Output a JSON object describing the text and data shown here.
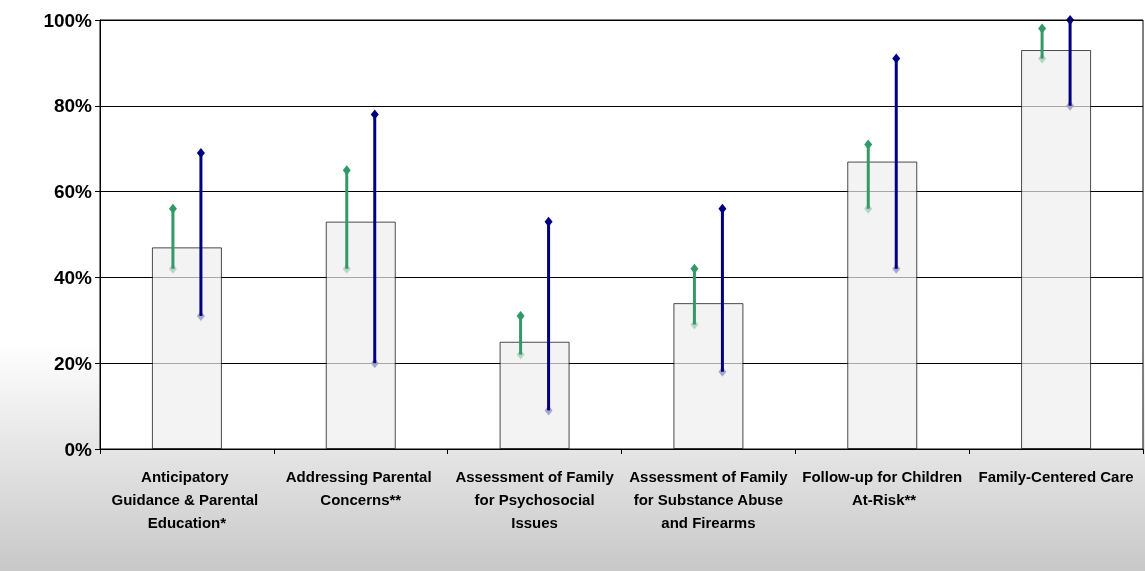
{
  "chart_data": {
    "type": "bar",
    "categories": [
      "Anticipatory Guidance & Parental Education*",
      "Addressing Parental Concerns**",
      "Assessment of Family for Psychosocial Issues",
      "Assessment of Family for Substance Abuse and Firearms",
      "Follow-up for Children At-Risk**",
      "Family-Centered Care"
    ],
    "series": [
      {
        "color": "#eeeeee",
        "values": [
          47,
          53,
          25,
          34,
          67,
          93
        ]
      },
      {
        "color": "#339966",
        "base": [
          42,
          42,
          22,
          29,
          56,
          91
        ],
        "values": [
          14,
          23,
          9,
          13,
          15,
          7
        ]
      },
      {
        "color": "#000080",
        "base": [
          31,
          20,
          9,
          18,
          42,
          80
        ],
        "values": [
          38,
          58,
          44,
          38,
          49,
          20
        ]
      }
    ],
    "ylim": [
      0,
      100
    ],
    "yticks": [
      {
        "value": 0,
        "label": "0%"
      },
      {
        "value": 20,
        "label": "20%"
      },
      {
        "value": 40,
        "label": "40%"
      },
      {
        "value": 60,
        "label": "60%"
      },
      {
        "value": 80,
        "label": "80%"
      },
      {
        "value": 100,
        "label": "100%"
      }
    ],
    "grid": "y",
    "marker": "diamond"
  }
}
